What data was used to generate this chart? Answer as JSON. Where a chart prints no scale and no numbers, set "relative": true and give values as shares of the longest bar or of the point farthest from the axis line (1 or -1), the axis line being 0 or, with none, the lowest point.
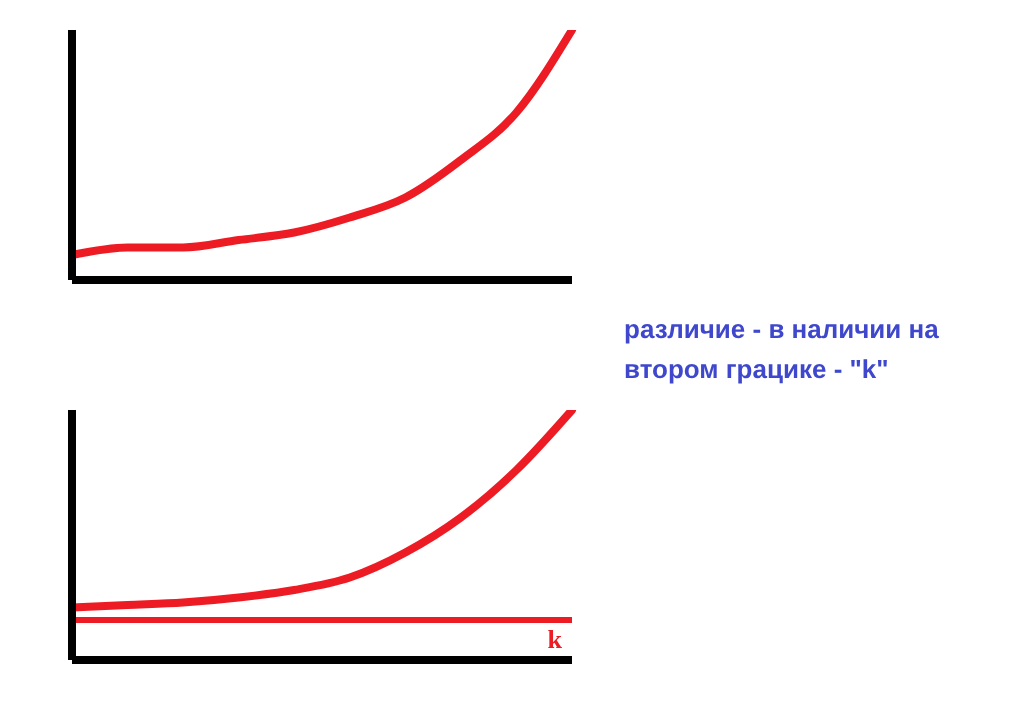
{
  "chart_data": [
    {
      "type": "line",
      "relative": true,
      "categories": [
        null,
        null,
        null,
        null,
        null,
        null,
        null,
        null,
        null,
        null
      ],
      "series": [
        {
          "color": "#ed1c24",
          "values": [
            0.1,
            0.13,
            0.13,
            0.16,
            0.19,
            0.25,
            0.33,
            0.48,
            0.67,
            1.0
          ]
        }
      ],
      "grid": false,
      "legend": false,
      "marker": "none",
      "line_style": "solid",
      "annotations": [
        "различие - в наличии на втором грацике - \"k\""
      ]
    },
    {
      "type": "line",
      "relative": true,
      "categories": [
        null,
        null,
        null,
        null,
        null,
        null,
        null,
        null,
        null,
        null
      ],
      "series": [
        {
          "color": "#ed1c24",
          "values": [
            0.21,
            0.22,
            0.23,
            0.25,
            0.28,
            0.33,
            0.43,
            0.57,
            0.76,
            1.0
          ]
        }
      ],
      "ref_lines": [
        {
          "axis": "y",
          "value": 0.16,
          "label": "k",
          "color": "#ed1c24"
        }
      ],
      "grid": false,
      "legend": false,
      "marker": "none",
      "line_style": "solid"
    }
  ]
}
